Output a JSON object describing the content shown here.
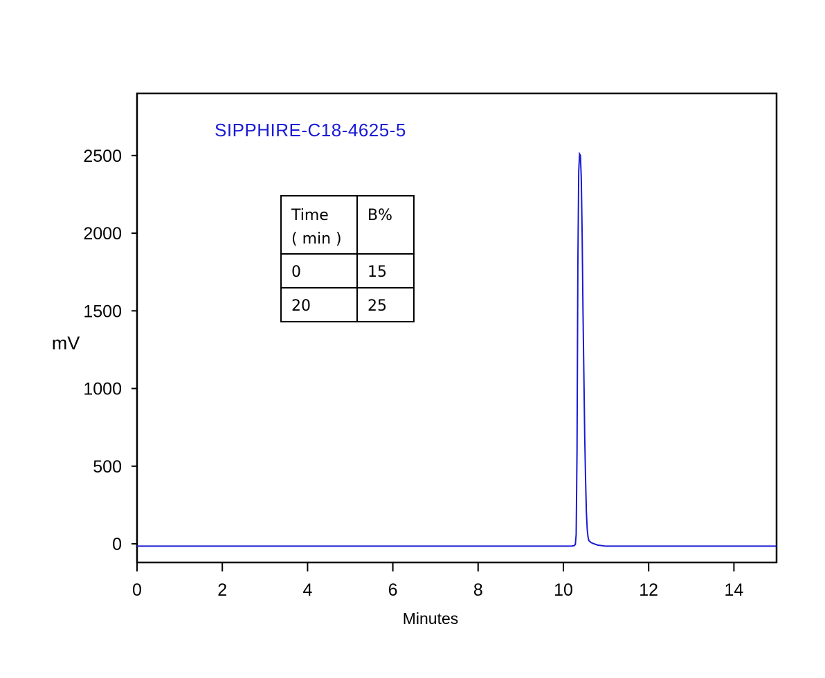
{
  "chart_data": {
    "type": "line",
    "title": "SIPPHIRE-C18-4625-5",
    "title_color": "#1a1ad6",
    "xlabel": "Minutes",
    "ylabel": "mV",
    "xlim": [
      0,
      15
    ],
    "ylim": [
      -120,
      2900
    ],
    "x_ticks": [
      0,
      2,
      4,
      6,
      8,
      10,
      12,
      14
    ],
    "x_tick_labels": [
      "0",
      "2",
      "4",
      "6",
      "8",
      "10",
      "12",
      "14"
    ],
    "y_ticks": [
      0,
      500,
      1000,
      1500,
      2000,
      2500
    ],
    "y_tick_labels": [
      "0",
      "500",
      "1000",
      "1500",
      "2000",
      "2500"
    ],
    "grid": false,
    "legend": "none",
    "series": [
      {
        "color": "#1a1ad6",
        "x": [
          0,
          10.1,
          10.2,
          10.25,
          10.28,
          10.3,
          10.32,
          10.34,
          10.36,
          10.38,
          10.4,
          10.42,
          10.44,
          10.46,
          10.48,
          10.5,
          10.52,
          10.54,
          10.56,
          10.58,
          10.6,
          10.65,
          10.7,
          10.8,
          11.0,
          15
        ],
        "y": [
          -15,
          -15,
          -14,
          -12,
          -5,
          60,
          600,
          1800,
          2400,
          2510,
          2500,
          2350,
          2000,
          1500,
          1100,
          700,
          420,
          200,
          90,
          40,
          20,
          8,
          2,
          -8,
          -15,
          -15
        ]
      }
    ],
    "inset_table": {
      "headers": [
        "Time\n( min )",
        "B%"
      ],
      "header_lines": [
        [
          "Time",
          "( min )"
        ],
        [
          "B%"
        ]
      ],
      "rows": [
        [
          "0",
          "15"
        ],
        [
          "20",
          "25"
        ]
      ]
    }
  }
}
